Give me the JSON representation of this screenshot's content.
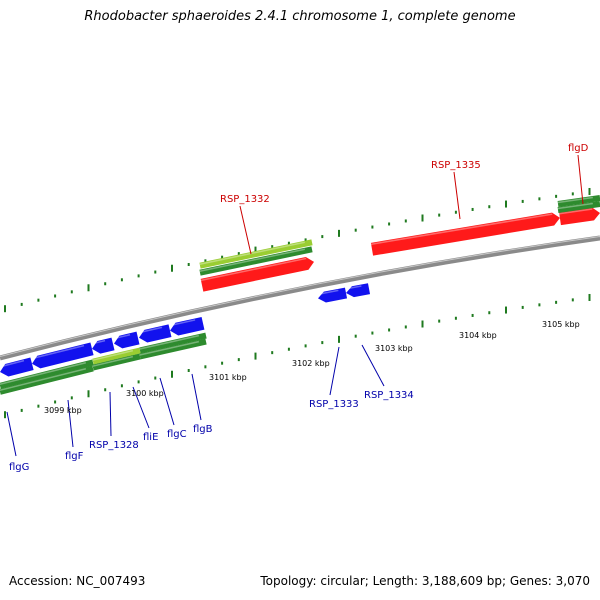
{
  "title": "Rhodobacter sphaeroides 2.4.1 chromosome 1, complete genome",
  "footer": {
    "accession": "Accession: NC_007493",
    "summary": "Topology: circular; Length: 3,188,609 bp; Genes: 3,070"
  },
  "colors": {
    "backbone": "#8a8a8a",
    "cds_forward": "#ff1a1a",
    "cds_reverse": "#1212ee",
    "gene": "#2e8b2e",
    "gene_highlight": "#9acd32",
    "tick": "#1f7a1f",
    "label_forward": "#cc0000",
    "label_reverse": "#0000aa"
  },
  "scale_labels": [
    "3099 kbp",
    "3100 kbp",
    "3101 kbp",
    "3102 kbp",
    "3103 kbp",
    "3104 kbp",
    "3105 kbp"
  ],
  "genes_forward": [
    {
      "name": "RSP_1332"
    },
    {
      "name": "RSP_1335"
    },
    {
      "name": "flgD"
    }
  ],
  "genes_reverse": [
    {
      "name": "flgG"
    },
    {
      "name": "flgF"
    },
    {
      "name": "RSP_1328"
    },
    {
      "name": "fliE"
    },
    {
      "name": "flgC"
    },
    {
      "name": "flgB"
    },
    {
      "name": "RSP_1333"
    },
    {
      "name": "RSP_1334"
    }
  ]
}
